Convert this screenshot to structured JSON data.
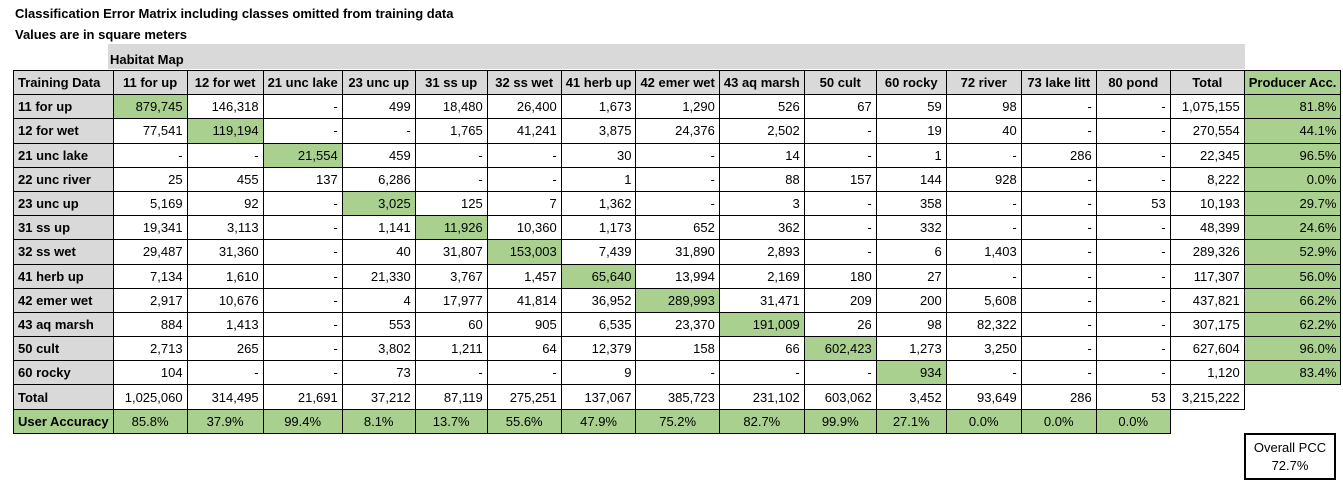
{
  "title_line1": "Classification Error Matrix including classes omitted from training data",
  "title_line2": "Values are in square meters",
  "habitat_map_label": "Habitat Map",
  "corner_header": "Training Data",
  "columns": [
    "11 for up",
    "12 for wet",
    "21 unc lake",
    "23 unc up",
    "31 ss up",
    "32 ss wet",
    "41 herb up",
    "42 emer wet",
    "43 aq marsh",
    "50 cult",
    "60 rocky",
    "72 river",
    "73 lake litt",
    "80 pond",
    "Total",
    "Producer Acc."
  ],
  "rows": [
    {
      "label": "11 for up",
      "cells": [
        "879,745",
        "146,318",
        "-",
        "499",
        "18,480",
        "26,400",
        "1,673",
        "1,290",
        "526",
        "67",
        "59",
        "98",
        "-",
        "-",
        "1,075,155",
        "81.8%"
      ]
    },
    {
      "label": "12 for wet",
      "cells": [
        "77,541",
        "119,194",
        "-",
        "-",
        "1,765",
        "41,241",
        "3,875",
        "24,376",
        "2,502",
        "-",
        "19",
        "40",
        "-",
        "-",
        "270,554",
        "44.1%"
      ]
    },
    {
      "label": "21 unc lake",
      "cells": [
        "-",
        "-",
        "21,554",
        "459",
        "-",
        "-",
        "30",
        "-",
        "14",
        "-",
        "1",
        "-",
        "286",
        "-",
        "22,345",
        "96.5%"
      ]
    },
    {
      "label": "22 unc river",
      "cells": [
        "25",
        "455",
        "137",
        "6,286",
        "-",
        "-",
        "1",
        "-",
        "88",
        "157",
        "144",
        "928",
        "-",
        "-",
        "8,222",
        "0.0%"
      ]
    },
    {
      "label": "23 unc up",
      "cells": [
        "5,169",
        "92",
        "-",
        "3,025",
        "125",
        "7",
        "1,362",
        "-",
        "3",
        "-",
        "358",
        "-",
        "-",
        "53",
        "10,193",
        "29.7%"
      ]
    },
    {
      "label": "31 ss up",
      "cells": [
        "19,341",
        "3,113",
        "-",
        "1,141",
        "11,926",
        "10,360",
        "1,173",
        "652",
        "362",
        "-",
        "332",
        "-",
        "-",
        "-",
        "48,399",
        "24.6%"
      ]
    },
    {
      "label": "32 ss wet",
      "cells": [
        "29,487",
        "31,360",
        "-",
        "40",
        "31,807",
        "153,003",
        "7,439",
        "31,890",
        "2,893",
        "-",
        "6",
        "1,403",
        "-",
        "-",
        "289,326",
        "52.9%"
      ]
    },
    {
      "label": "41 herb up",
      "cells": [
        "7,134",
        "1,610",
        "-",
        "21,330",
        "3,767",
        "1,457",
        "65,640",
        "13,994",
        "2,169",
        "180",
        "27",
        "-",
        "-",
        "-",
        "117,307",
        "56.0%"
      ]
    },
    {
      "label": "42 emer wet",
      "cells": [
        "2,917",
        "10,676",
        "-",
        "4",
        "17,977",
        "41,814",
        "36,952",
        "289,993",
        "31,471",
        "209",
        "200",
        "5,608",
        "-",
        "-",
        "437,821",
        "66.2%"
      ]
    },
    {
      "label": "43 aq marsh",
      "cells": [
        "884",
        "1,413",
        "-",
        "553",
        "60",
        "905",
        "6,535",
        "23,370",
        "191,009",
        "26",
        "98",
        "82,322",
        "-",
        "-",
        "307,175",
        "62.2%"
      ]
    },
    {
      "label": "50 cult",
      "cells": [
        "2,713",
        "265",
        "-",
        "3,802",
        "1,211",
        "64",
        "12,379",
        "158",
        "66",
        "602,423",
        "1,273",
        "3,250",
        "-",
        "-",
        "627,604",
        "96.0%"
      ]
    },
    {
      "label": "60 rocky",
      "cells": [
        "104",
        "-",
        "-",
        "73",
        "-",
        "-",
        "9",
        "-",
        "-",
        "-",
        "934",
        "-",
        "-",
        "-",
        "1,120",
        "83.4%"
      ]
    }
  ],
  "highlighted": [
    [
      0,
      0
    ],
    [
      1,
      1
    ],
    [
      2,
      2
    ],
    [
      4,
      3
    ],
    [
      5,
      4
    ],
    [
      6,
      5
    ],
    [
      7,
      6
    ],
    [
      8,
      7
    ],
    [
      9,
      8
    ],
    [
      10,
      9
    ],
    [
      11,
      10
    ]
  ],
  "total_row": {
    "label": "Total",
    "cells": [
      "1,025,060",
      "314,495",
      "21,691",
      "37,212",
      "87,119",
      "275,251",
      "137,067",
      "385,723",
      "231,102",
      "603,062",
      "3,452",
      "93,649",
      "286",
      "53",
      "3,215,222"
    ]
  },
  "user_accuracy_row": {
    "label": "User Accuracy",
    "cells": [
      "85.8%",
      "37.9%",
      "99.4%",
      "8.1%",
      "13.7%",
      "55.6%",
      "47.9%",
      "75.2%",
      "82.7%",
      "99.9%",
      "27.1%",
      "0.0%",
      "0.0%",
      "0.0%"
    ]
  },
  "overall_pcc": {
    "label": "Overall PCC",
    "value": "72.7%"
  },
  "colors": {
    "header_gray": "#d9d9d9",
    "highlight_green": "#a9d08e"
  }
}
